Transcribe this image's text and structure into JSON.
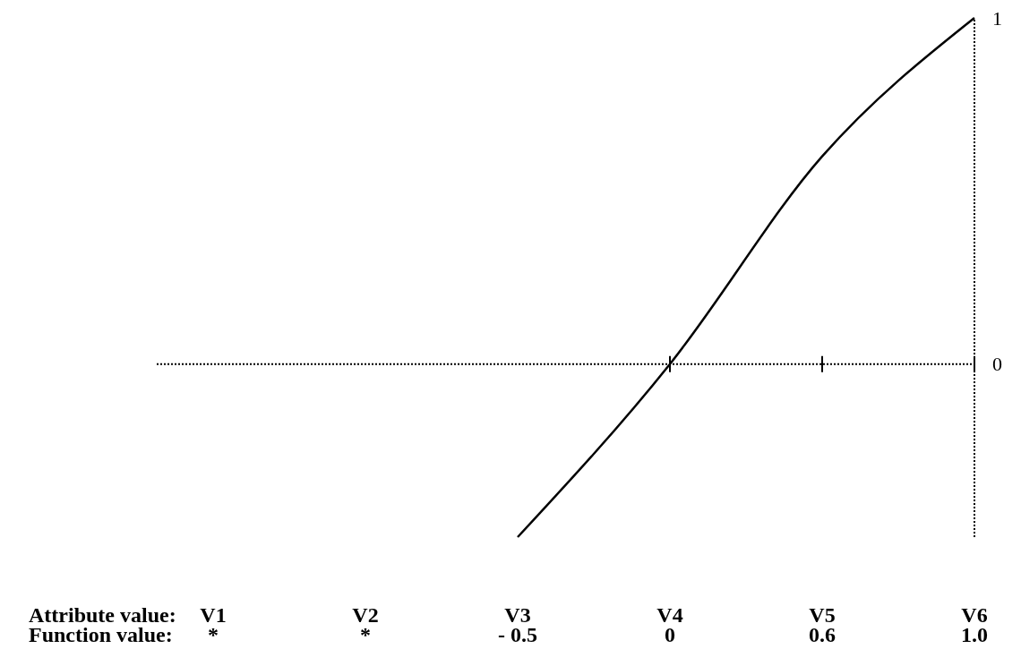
{
  "chart_data": {
    "type": "line",
    "xlabel": "Attribute value:",
    "annotations": [
      "Function value:"
    ],
    "categories": [
      "V1",
      "V2",
      "V3",
      "V4",
      "V5",
      "V6"
    ],
    "series": [
      {
        "color": "#000000",
        "values": [
          null,
          null,
          -0.5,
          0,
          0.6,
          1.0
        ],
        "value_labels": [
          "*",
          "*",
          "- 0.5",
          "0",
          "0.6",
          "1.0"
        ]
      }
    ],
    "ylim": [
      -0.5,
      1
    ],
    "yticks": [
      0,
      1
    ],
    "marker": "none",
    "line_style": "solid"
  }
}
